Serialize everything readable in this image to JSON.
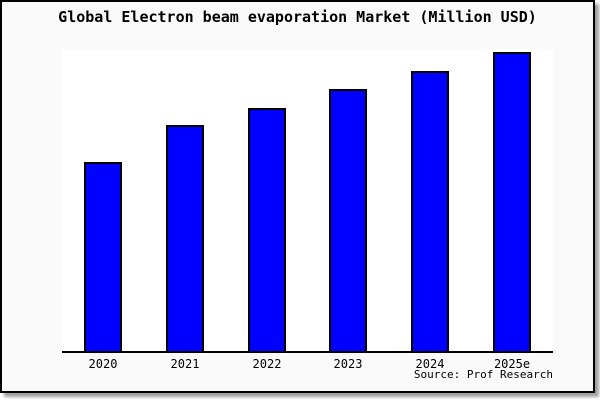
{
  "page": {
    "background": "#ffffff"
  },
  "card": {
    "background": "#fafafa",
    "border_color": "#000000",
    "shadow_color": "#999999"
  },
  "chart_data": {
    "type": "bar",
    "title": "Global Electron beam evaporation Market (Million USD)",
    "categories": [
      "2020",
      "2021",
      "2022",
      "2023",
      "2024",
      "2025e"
    ],
    "values": [
      190,
      227,
      245,
      264,
      282,
      301
    ],
    "value_units": "relative (no y-axis scale shown in chart; values proportional to bar heights)",
    "ylim": [
      0,
      304
    ],
    "xlabel": "",
    "ylabel": "",
    "grid": false,
    "legend": false,
    "bar_fill_color": "#0000ff",
    "bar_edge_color": "#000000",
    "plot_background": "#ffffff",
    "axis_line_color": "#000000",
    "source_note": "Source: Prof Research"
  }
}
